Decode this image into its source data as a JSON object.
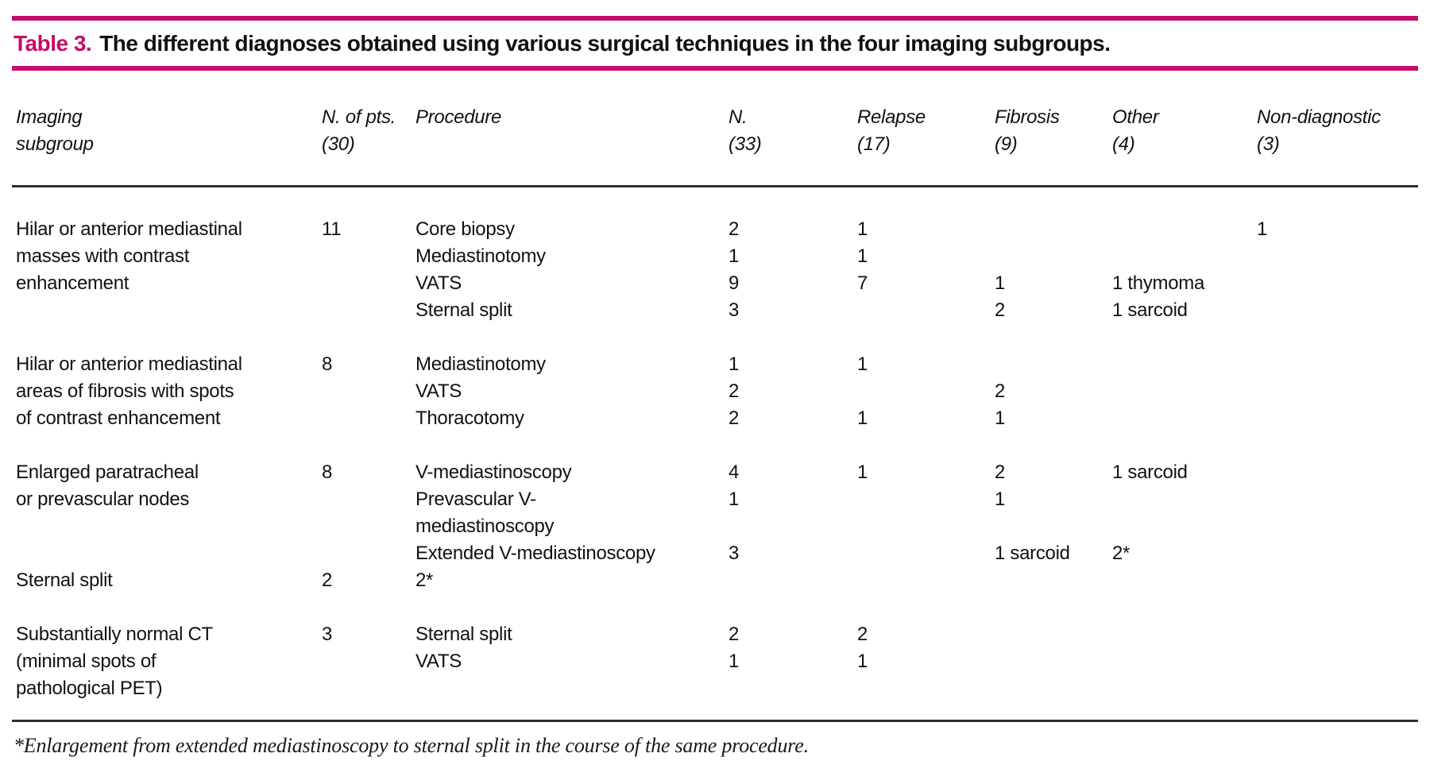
{
  "colors": {
    "accent": "#c60d6a",
    "rule_dark": "#2e2e2e",
    "text": "#121212",
    "background": "#ffffff"
  },
  "title": {
    "label": "Table 3.",
    "text": "The different diagnoses obtained using various surgical techniques in the four imaging subgroups."
  },
  "header": {
    "columns": [
      {
        "line1": "Imaging",
        "line2": "subgroup"
      },
      {
        "line1": "N. of pts.",
        "line2": "(30)"
      },
      {
        "line1": "Procedure",
        "line2": ""
      },
      {
        "line1": "N.",
        "line2": "(33)"
      },
      {
        "line1": "Relapse",
        "line2": "(17)"
      },
      {
        "line1": "Fibrosis",
        "line2": "(9)"
      },
      {
        "line1": "Other",
        "line2": "(4)"
      },
      {
        "line1": "Non-diagnostic",
        "line2": "(3)"
      }
    ]
  },
  "column_keys": [
    "subgroup",
    "pts",
    "procedure",
    "n",
    "relapse",
    "fibrosis",
    "other",
    "nondiagnostic"
  ],
  "groups": [
    {
      "subgroup": [
        "Hilar or anterior mediastinal",
        "masses with contrast",
        "enhancement",
        ""
      ],
      "pts": [
        "11",
        "",
        "",
        ""
      ],
      "procedure": [
        "Core biopsy",
        "Mediastinotomy",
        "VATS",
        "Sternal split"
      ],
      "n": [
        "2",
        "1",
        "9",
        "3"
      ],
      "relapse": [
        "1",
        "1",
        "7",
        ""
      ],
      "fibrosis": [
        "",
        "",
        "1",
        "2"
      ],
      "other": [
        "",
        "",
        "1 thymoma",
        "1 sarcoid"
      ],
      "nondiagnostic": [
        "1",
        "",
        "",
        ""
      ]
    },
    {
      "subgroup": [
        "Hilar or anterior mediastinal",
        "areas of fibrosis with spots",
        "of contrast enhancement"
      ],
      "pts": [
        "8",
        "",
        ""
      ],
      "procedure": [
        "Mediastinotomy",
        "VATS",
        "Thoracotomy"
      ],
      "n": [
        "1",
        "2",
        "2"
      ],
      "relapse": [
        "1",
        "",
        "1"
      ],
      "fibrosis": [
        "",
        "2",
        "1"
      ],
      "other": [
        "",
        "",
        ""
      ],
      "nondiagnostic": [
        "",
        "",
        ""
      ]
    },
    {
      "subgroup": [
        "Enlarged paratracheal",
        "or prevascular nodes",
        "",
        "",
        "Sternal split"
      ],
      "pts": [
        "8",
        "",
        "",
        "",
        "2"
      ],
      "procedure": [
        "V-mediastinoscopy",
        "Prevascular V-",
        "mediastinoscopy",
        "Extended V-mediastinoscopy",
        "2*"
      ],
      "n": [
        "4",
        "1",
        "",
        "3",
        ""
      ],
      "relapse": [
        "1",
        "",
        "",
        "",
        ""
      ],
      "fibrosis": [
        "2",
        "1",
        "",
        "1 sarcoid",
        ""
      ],
      "other": [
        "1 sarcoid",
        "",
        "",
        "2*",
        ""
      ],
      "nondiagnostic": [
        "",
        "",
        "",
        "",
        ""
      ]
    },
    {
      "subgroup": [
        "Substantially normal CT",
        "(minimal spots of",
        "pathological PET)"
      ],
      "pts": [
        "3",
        "",
        ""
      ],
      "procedure": [
        "Sternal split",
        "VATS",
        ""
      ],
      "n": [
        "2",
        "1",
        ""
      ],
      "relapse": [
        "2",
        "1",
        ""
      ],
      "fibrosis": [
        "",
        "",
        ""
      ],
      "other": [
        "",
        "",
        ""
      ],
      "nondiagnostic": [
        "",
        "",
        ""
      ]
    }
  ],
  "footnote": {
    "text": "*Enlargement from extended mediastinoscopy to sternal split in the course of the same procedure."
  }
}
